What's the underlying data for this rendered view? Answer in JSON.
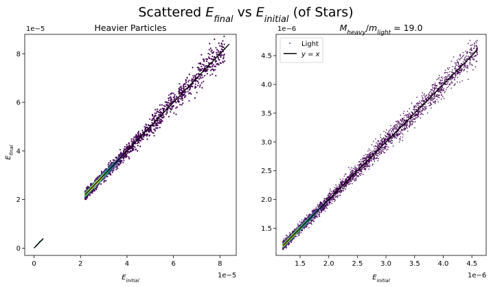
{
  "figure": {
    "suptitle_parts": [
      {
        "text": "Scattered ",
        "italic": false
      },
      {
        "text": "E",
        "italic": true,
        "sub": "final"
      },
      {
        "text": " vs ",
        "italic": false
      },
      {
        "text": "E",
        "italic": true,
        "sub": "initial"
      },
      {
        "text": " (of Stars)",
        "italic": false
      }
    ]
  },
  "chart_data": [
    {
      "type": "scatter",
      "title": "Heavier Particles",
      "xlabel": {
        "base": "E",
        "sub": "initial"
      },
      "ylabel": {
        "base": "E",
        "sub": "final"
      },
      "x_offset_label": "1e−5",
      "y_offset_label": "1e−5",
      "xlim": [
        -0.4,
        8.7
      ],
      "ylim": [
        -0.3,
        8.8
      ],
      "xticks": [
        0,
        2,
        4,
        6,
        8
      ],
      "yticks": [
        0,
        2,
        4,
        6,
        8
      ],
      "xticklabels": [
        "0",
        "2",
        "4",
        "6",
        "8"
      ],
      "yticklabels": [
        "0",
        "2",
        "4",
        "6",
        "8"
      ],
      "point_color_scale": "viridis",
      "cluster_points": [
        {
          "x": 0.1,
          "y": 0.1
        },
        {
          "x": 0.15,
          "y": 0.15
        },
        {
          "x": 0.2,
          "y": 0.22
        },
        {
          "x": 0.25,
          "y": 0.27
        },
        {
          "x": 0.3,
          "y": 0.3
        },
        {
          "x": 0.35,
          "y": 0.34
        }
      ],
      "main_cloud": {
        "x_min": 2.2,
        "x_max": 8.2,
        "spread_y": 0.45,
        "dense_center": 2.6
      },
      "reference_line": {
        "x": [
          2.2,
          8.4
        ],
        "y": [
          2.2,
          8.4
        ],
        "color": "#000000"
      },
      "reference_line_low": {
        "x": [
          0.0,
          0.4
        ],
        "y": [
          0.0,
          0.4
        ]
      },
      "grid": false
    },
    {
      "type": "scatter",
      "title_parts": [
        {
          "text": "M",
          "italic": true,
          "sub": "heavy"
        },
        {
          "text": "/",
          "italic": false
        },
        {
          "text": "m",
          "italic": true,
          "sub": "light"
        },
        {
          "text": " = 19.0",
          "italic": false
        }
      ],
      "xlabel": {
        "base": "E",
        "sub": "initial"
      },
      "x_offset_label": "1e−6",
      "y_offset_label": "1e−6",
      "xlim": [
        1.08,
        4.75
      ],
      "ylim": [
        1.03,
        4.87
      ],
      "xticks": [
        1.5,
        2.0,
        2.5,
        3.0,
        3.5,
        4.0,
        4.5
      ],
      "yticks": [
        1.5,
        2.0,
        2.5,
        3.0,
        3.5,
        4.0,
        4.5
      ],
      "xticklabels": [
        "1.5",
        "2.0",
        "2.5",
        "3.0",
        "3.5",
        "4.0",
        "4.5"
      ],
      "yticklabels": [
        "1.5",
        "2.0",
        "2.5",
        "3.0",
        "3.5",
        "4.0",
        "4.5"
      ],
      "point_color_scale": "viridis",
      "main_cloud": {
        "x_min": 1.2,
        "x_max": 4.6,
        "spread_y": 0.17,
        "dense_center": 1.3
      },
      "reference_line": {
        "x": [
          1.2,
          4.6
        ],
        "y": [
          1.2,
          4.6
        ],
        "color": "#000000"
      },
      "legend": {
        "position": "upper-left",
        "entries": [
          {
            "label": "Light",
            "marker": "point",
            "color": "#440154"
          },
          {
            "label_parts": [
              {
                "text": "y",
                "italic": true
              },
              {
                "text": " = ",
                "italic": false
              },
              {
                "text": "x",
                "italic": true
              }
            ],
            "marker": "line",
            "color": "#000000"
          }
        ]
      },
      "grid": false
    }
  ]
}
